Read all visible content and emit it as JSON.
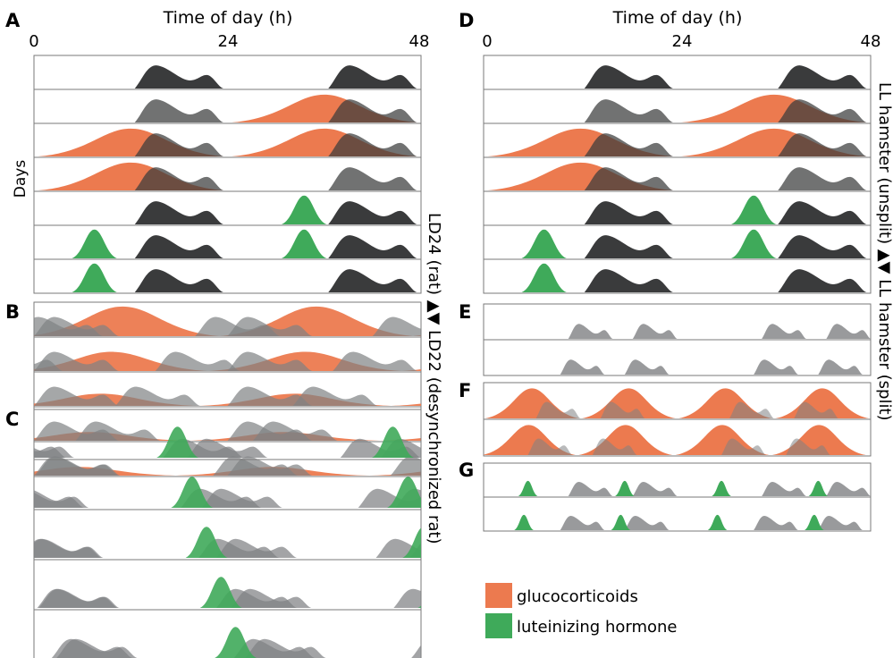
{
  "axis": {
    "title": "Time of day (h)",
    "ticks": [
      "0",
      "24",
      "48"
    ],
    "ylabel": "Days"
  },
  "side_labels": {
    "left": "LD24 (rat) ▲▼ LD22 (desynchronized rat)",
    "right": "LL hamster (unsplit) ▲▼ LL hamster (split)"
  },
  "legend": {
    "glucocorticoids": "glucocorticoids",
    "lh": "luteinizing hormone"
  },
  "colors": {
    "activity_dark": "#3a3b3c",
    "activity_gray": "#7f8183",
    "glucocorticoids": "#ec7a4f",
    "lh": "#3faa5a",
    "frame": "#7a7a7a"
  },
  "panels": [
    {
      "label": "A",
      "rows": 7,
      "pattern": "LD24 rat: activity at night, glucocorticoid peak near onset, LH surge before onset"
    },
    {
      "label": "B",
      "rows": 5,
      "pattern": "LD22 desynchronized: activity and glucocorticoid bouts drift across days"
    },
    {
      "label": "C",
      "rows": 5,
      "pattern": "LD22 desynchronized: LH surges drift with activity"
    },
    {
      "label": "D",
      "rows": 7,
      "pattern": "LL hamster unsplit"
    },
    {
      "label": "E",
      "rows": 2,
      "pattern": "LL hamster split: two activity bouts per day"
    },
    {
      "label": "F",
      "rows": 2,
      "pattern": "LL hamster split: two glucocorticoid peaks per day"
    },
    {
      "label": "G",
      "rows": 2,
      "pattern": "LL hamster split: two LH surges per day"
    }
  ]
}
